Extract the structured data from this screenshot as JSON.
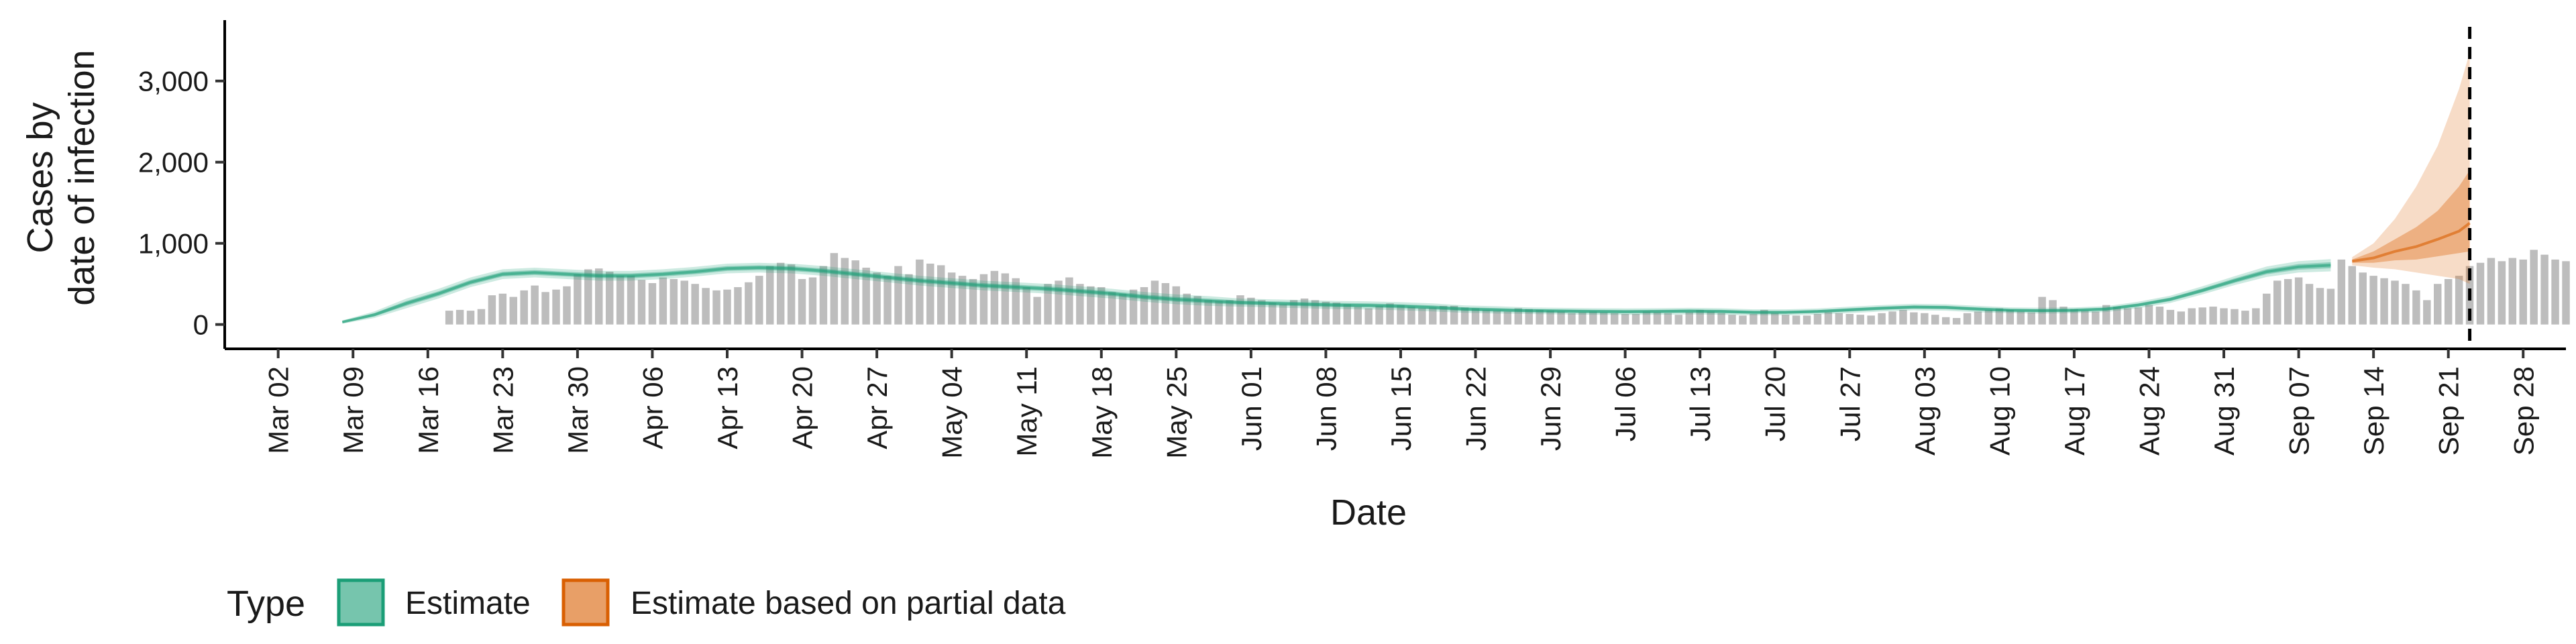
{
  "chart_data": {
    "type": "bar",
    "xlabel": "Date",
    "ylabel_lines": [
      "Cases by",
      "date of infection"
    ],
    "ylim": [
      -300,
      3750
    ],
    "y_ticks": [
      0,
      1000,
      2000,
      3000
    ],
    "y_tick_labels": [
      "0",
      "1,000",
      "2,000",
      "3,000"
    ],
    "x_start_date": "2020-02-26",
    "x_end_date": "2020-10-02",
    "x_ticks": [
      "2020-03-02",
      "2020-03-09",
      "2020-03-16",
      "2020-03-23",
      "2020-03-30",
      "2020-04-06",
      "2020-04-13",
      "2020-04-20",
      "2020-04-27",
      "2020-05-04",
      "2020-05-11",
      "2020-05-18",
      "2020-05-25",
      "2020-06-01",
      "2020-06-08",
      "2020-06-15",
      "2020-06-22",
      "2020-06-29",
      "2020-07-06",
      "2020-07-13",
      "2020-07-20",
      "2020-07-27",
      "2020-08-03",
      "2020-08-10",
      "2020-08-17",
      "2020-08-24",
      "2020-08-31",
      "2020-09-07",
      "2020-09-14",
      "2020-09-21",
      "2020-09-28"
    ],
    "x_tick_labels": [
      "Mar 02",
      "Mar 09",
      "Mar 16",
      "Mar 23",
      "Mar 30",
      "Apr 06",
      "Apr 13",
      "Apr 20",
      "Apr 27",
      "May 04",
      "May 11",
      "May 18",
      "May 25",
      "Jun 01",
      "Jun 08",
      "Jun 15",
      "Jun 22",
      "Jun 29",
      "Jul 06",
      "Jul 13",
      "Jul 20",
      "Jul 27",
      "Aug 03",
      "Aug 10",
      "Aug 17",
      "Aug 24",
      "Aug 31",
      "Sep 07",
      "Sep 14",
      "Sep 21",
      "Sep 28"
    ],
    "bars": {
      "start_date": "2020-03-18",
      "color": "#bdbdbd",
      "values": [
        170,
        180,
        170,
        190,
        360,
        380,
        340,
        420,
        480,
        400,
        430,
        470,
        620,
        680,
        690,
        650,
        600,
        600,
        550,
        510,
        580,
        560,
        540,
        500,
        450,
        420,
        430,
        460,
        520,
        600,
        720,
        760,
        740,
        560,
        580,
        720,
        880,
        820,
        790,
        700,
        640,
        600,
        720,
        620,
        800,
        750,
        730,
        640,
        600,
        560,
        620,
        660,
        630,
        570,
        460,
        340,
        500,
        540,
        580,
        500,
        470,
        460,
        400,
        380,
        430,
        460,
        540,
        510,
        470,
        380,
        350,
        300,
        290,
        300,
        360,
        330,
        300,
        270,
        250,
        300,
        320,
        300,
        280,
        270,
        250,
        220,
        200,
        230,
        260,
        240,
        220,
        200,
        210,
        230,
        230,
        210,
        200,
        180,
        170,
        160,
        200,
        190,
        180,
        170,
        160,
        140,
        150,
        160,
        150,
        140,
        130,
        130,
        160,
        150,
        140,
        120,
        150,
        180,
        160,
        140,
        120,
        110,
        130,
        180,
        140,
        120,
        110,
        110,
        130,
        150,
        140,
        130,
        120,
        110,
        140,
        160,
        180,
        150,
        140,
        120,
        90,
        80,
        140,
        160,
        180,
        200,
        180,
        160,
        150,
        340,
        300,
        220,
        190,
        170,
        160,
        240,
        220,
        200,
        210,
        240,
        220,
        180,
        160,
        200,
        210,
        220,
        200,
        190,
        170,
        200,
        380,
        540,
        560,
        580,
        500,
        450,
        440,
        800,
        720,
        640,
        600,
        570,
        540,
        500,
        420,
        300,
        500,
        560,
        600,
        720,
        760,
        820,
        780,
        820,
        800,
        920,
        860,
        800,
        780
      ]
    },
    "estimate": {
      "name": "Estimate",
      "color": "#1b9e77",
      "dates": [
        "2020-03-08",
        "2020-03-11",
        "2020-03-14",
        "2020-03-17",
        "2020-03-20",
        "2020-03-23",
        "2020-03-26",
        "2020-03-29",
        "2020-04-01",
        "2020-04-04",
        "2020-04-07",
        "2020-04-10",
        "2020-04-13",
        "2020-04-16",
        "2020-04-19",
        "2020-04-22",
        "2020-04-25",
        "2020-04-28",
        "2020-05-01",
        "2020-05-04",
        "2020-05-07",
        "2020-05-10",
        "2020-05-13",
        "2020-05-16",
        "2020-05-19",
        "2020-05-22",
        "2020-05-25",
        "2020-05-28",
        "2020-05-31",
        "2020-06-03",
        "2020-06-06",
        "2020-06-09",
        "2020-06-12",
        "2020-06-15",
        "2020-06-18",
        "2020-06-21",
        "2020-06-24",
        "2020-06-27",
        "2020-06-30",
        "2020-07-03",
        "2020-07-06",
        "2020-07-09",
        "2020-07-12",
        "2020-07-15",
        "2020-07-18",
        "2020-07-21",
        "2020-07-24",
        "2020-07-27",
        "2020-07-30",
        "2020-08-02",
        "2020-08-05",
        "2020-08-08",
        "2020-08-11",
        "2020-08-14",
        "2020-08-17",
        "2020-08-20",
        "2020-08-23",
        "2020-08-26",
        "2020-08-29",
        "2020-09-01",
        "2020-09-04",
        "2020-09-07",
        "2020-09-10"
      ],
      "median": [
        30,
        120,
        260,
        380,
        520,
        620,
        640,
        620,
        600,
        600,
        620,
        650,
        690,
        700,
        690,
        660,
        620,
        580,
        540,
        510,
        480,
        460,
        440,
        410,
        380,
        340,
        310,
        290,
        270,
        260,
        250,
        240,
        235,
        225,
        210,
        190,
        180,
        170,
        165,
        160,
        158,
        160,
        165,
        160,
        150,
        150,
        160,
        180,
        200,
        215,
        210,
        190,
        175,
        170,
        175,
        190,
        240,
        310,
        420,
        540,
        650,
        710,
        730
      ],
      "lower50": [
        20,
        100,
        230,
        350,
        490,
        590,
        610,
        590,
        570,
        570,
        590,
        620,
        660,
        670,
        660,
        630,
        590,
        550,
        510,
        480,
        450,
        430,
        410,
        380,
        350,
        310,
        280,
        260,
        245,
        235,
        225,
        215,
        210,
        200,
        185,
        168,
        158,
        150,
        145,
        140,
        138,
        140,
        145,
        140,
        132,
        132,
        142,
        160,
        180,
        195,
        190,
        170,
        157,
        152,
        157,
        172,
        220,
        288,
        395,
        512,
        618,
        675,
        693
      ],
      "upper50": [
        40,
        140,
        290,
        410,
        550,
        650,
        670,
        650,
        630,
        630,
        650,
        680,
        720,
        730,
        720,
        690,
        650,
        610,
        570,
        540,
        510,
        490,
        470,
        440,
        410,
        370,
        340,
        320,
        295,
        285,
        275,
        265,
        260,
        250,
        235,
        212,
        202,
        190,
        185,
        180,
        178,
        180,
        185,
        180,
        168,
        168,
        178,
        200,
        220,
        235,
        230,
        210,
        193,
        188,
        193,
        208,
        260,
        332,
        445,
        568,
        682,
        745,
        767
      ],
      "lower90": [
        10,
        80,
        200,
        320,
        460,
        560,
        580,
        560,
        540,
        540,
        560,
        590,
        630,
        640,
        630,
        600,
        560,
        520,
        480,
        450,
        420,
        400,
        380,
        350,
        320,
        280,
        250,
        230,
        220,
        210,
        200,
        190,
        185,
        175,
        160,
        145,
        135,
        130,
        125,
        120,
        118,
        120,
        125,
        120,
        113,
        113,
        123,
        140,
        160,
        175,
        170,
        150,
        139,
        134,
        139,
        154,
        200,
        265,
        370,
        485,
        585,
        640,
        655
      ],
      "upper90": [
        50,
        160,
        320,
        440,
        580,
        680,
        700,
        680,
        660,
        660,
        680,
        710,
        750,
        760,
        750,
        720,
        680,
        640,
        600,
        570,
        540,
        520,
        500,
        470,
        440,
        400,
        370,
        350,
        320,
        310,
        300,
        290,
        285,
        275,
        260,
        235,
        225,
        210,
        205,
        200,
        198,
        200,
        205,
        200,
        187,
        187,
        197,
        220,
        240,
        255,
        250,
        230,
        211,
        206,
        211,
        226,
        280,
        355,
        470,
        595,
        715,
        780,
        805
      ]
    },
    "partial": {
      "name": "Estimate based on partial data",
      "color": "#d95f02",
      "dates": [
        "2020-09-12",
        "2020-09-14",
        "2020-09-16",
        "2020-09-18",
        "2020-09-20",
        "2020-09-22",
        "2020-09-23"
      ],
      "median": [
        780,
        820,
        900,
        960,
        1050,
        1150,
        1250
      ],
      "lower50": [
        760,
        760,
        790,
        800,
        840,
        880,
        900
      ],
      "upper50": [
        800,
        900,
        1050,
        1200,
        1400,
        1700,
        1900
      ],
      "lower90": [
        730,
        700,
        680,
        640,
        600,
        560,
        500
      ],
      "upper90": [
        830,
        1000,
        1300,
        1700,
        2200,
        2900,
        3350
      ]
    },
    "vline_date": "2020-09-23",
    "legend": {
      "title": "Type",
      "items": [
        "Estimate",
        "Estimate based on partial data"
      ]
    }
  }
}
